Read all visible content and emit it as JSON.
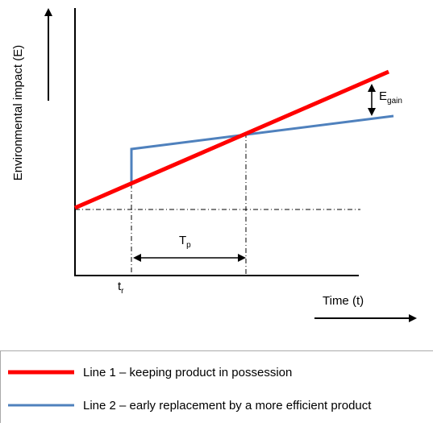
{
  "y_axis_label": "Environmental impact (E)",
  "x_axis_label": "Time (t)",
  "annotations": {
    "e_gain": {
      "main": "E",
      "sub": "gain"
    },
    "t_p": {
      "main": "T",
      "sub": "p"
    },
    "t_r": {
      "main": "t",
      "sub": "r"
    }
  },
  "legend": [
    "Line 1 – keeping product in possession",
    "Line 2 – early replacement by a more efficient product"
  ]
}
